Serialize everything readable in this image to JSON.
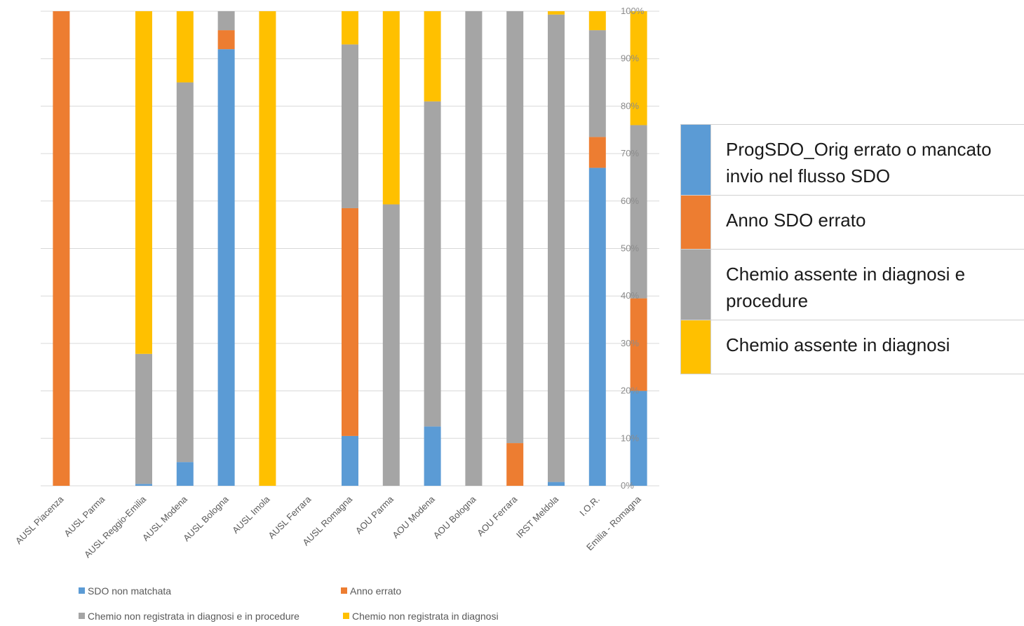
{
  "chart_data": {
    "type": "bar",
    "stacked": true,
    "percent": true,
    "categories": [
      "AUSL Piacenza",
      "AUSL Parma",
      "AUSL Reggio-Emilia",
      "AUSL Modena",
      "AUSL Bologna",
      "AUSL Imola",
      "AUSL Ferrara",
      "AUSL Romagna",
      "AOU Parma",
      "AOU Modena",
      "AOU Bologna",
      "AOU Ferrara",
      "IRST Meldola",
      "I.O.R.",
      "Emilia - Romagna"
    ],
    "series": [
      {
        "name": "SDO non matchata",
        "color": "#5b9bd5",
        "values": [
          0,
          0,
          0.4,
          5,
          92,
          0,
          0,
          10.5,
          0,
          12.5,
          0,
          0,
          0.8,
          67,
          20
        ]
      },
      {
        "name": "Anno errato",
        "color": "#ed7d31",
        "values": [
          100,
          0,
          0,
          0,
          4,
          0,
          0,
          48,
          0,
          0,
          0,
          9,
          0,
          6.5,
          19.5
        ]
      },
      {
        "name": "Chemio non registrata in diagnosi e in procedure",
        "color": "#a5a5a5",
        "values": [
          0,
          0,
          27.4,
          80,
          4,
          0,
          0,
          34.5,
          59.3,
          68.5,
          100,
          91,
          98.5,
          22.5,
          36.5
        ]
      },
      {
        "name": "Chemio non registrata in diagnosi",
        "color": "#ffc000",
        "values": [
          0,
          0,
          72.2,
          15,
          0,
          100,
          0,
          7,
          40.7,
          19,
          0,
          0,
          0.7,
          4,
          24
        ]
      }
    ],
    "y_ticks": [
      "0%",
      "10%",
      "20%",
      "30%",
      "40%",
      "50%",
      "60%",
      "70%",
      "80%",
      "90%",
      "100%"
    ],
    "ylim": [
      0,
      100
    ],
    "title": "",
    "xlabel": "",
    "ylabel": "",
    "grid": true,
    "legend_placement": "bottom"
  },
  "side_legend": {
    "items": [
      {
        "label": "ProgSDO_Orig errato o mancato invio nel flusso SDO",
        "color": "#5b9bd5"
      },
      {
        "label": "Anno SDO errato",
        "color": "#ed7d31"
      },
      {
        "label": "Chemio assente in diagnosi e procedure",
        "color": "#a5a5a5"
      },
      {
        "label": "Chemio assente in diagnosi",
        "color": "#ffc000"
      }
    ]
  }
}
